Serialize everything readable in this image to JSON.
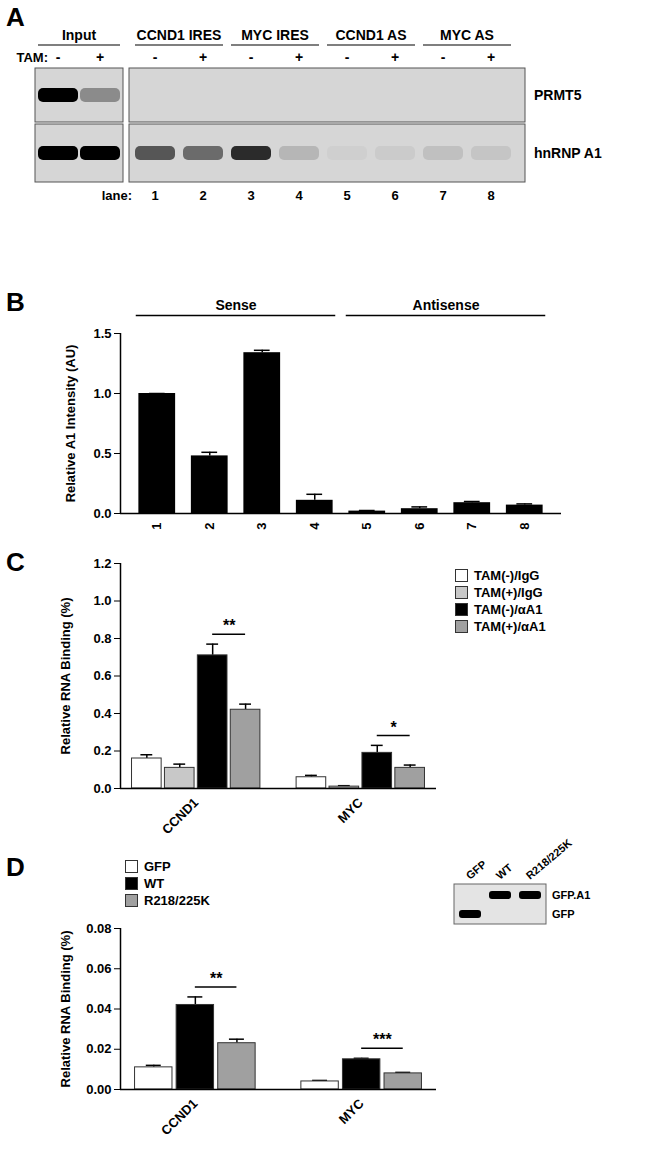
{
  "blot": {
    "panel": "A",
    "tam_label": "TAM:",
    "lane_label": "lane:",
    "groups": [
      {
        "label": "Input",
        "lanes": [
          {
            "tam": "-"
          },
          {
            "tam": "+"
          }
        ]
      },
      {
        "label": "CCND1 IRES",
        "lanes": [
          {
            "tam": "-",
            "number": 1
          },
          {
            "tam": "+",
            "number": 2
          }
        ]
      },
      {
        "label": "MYC IRES",
        "lanes": [
          {
            "tam": "-",
            "number": 3
          },
          {
            "tam": "+",
            "number": 4
          }
        ]
      },
      {
        "label": "CCND1 AS",
        "lanes": [
          {
            "tam": "-",
            "number": 5
          },
          {
            "tam": "+",
            "number": 6
          }
        ]
      },
      {
        "label": "MYC AS",
        "lanes": [
          {
            "tam": "-",
            "number": 7
          },
          {
            "tam": "+",
            "number": 8
          }
        ]
      }
    ],
    "rows": [
      {
        "label": "PRMT5",
        "signals": [
          1,
          0.35,
          0,
          0,
          0,
          0,
          0,
          0,
          0,
          0
        ]
      },
      {
        "label": "hnRNP A1",
        "signals": [
          1,
          1,
          0.6,
          0.5,
          0.8,
          0.15,
          0.03,
          0.05,
          0.1,
          0.08
        ]
      }
    ]
  },
  "chart_data": [
    {
      "panel": "B",
      "type": "bar",
      "y_label": "Relative A1 Intensity (AU)",
      "categories": [
        "1",
        "2",
        "3",
        "4",
        "5",
        "6",
        "7",
        "8"
      ],
      "values": [
        1.0,
        0.48,
        1.34,
        0.11,
        0.02,
        0.04,
        0.09,
        0.07
      ],
      "errors": [
        0.0,
        0.03,
        0.02,
        0.05,
        0.005,
        0.015,
        0.01,
        0.01
      ],
      "color": "#000000",
      "ylim": [
        0,
        1.5
      ],
      "yticks": [
        {
          "value": 0,
          "label": "0.0"
        },
        0.5,
        {
          "value": 1,
          "label": "1.0"
        },
        1.5
      ],
      "groups": [
        {
          "label": "Sense",
          "from": "1",
          "to": "4"
        },
        {
          "label": "Antisense",
          "from": "5",
          "to": "8"
        }
      ]
    },
    {
      "panel": "C",
      "type": "bar",
      "y_label": "Relative RNA Binding (%)",
      "categories": [
        "CCND1",
        "MYC"
      ],
      "series": [
        {
          "name": "TAM(-)/IgG",
          "color": "#ffffff",
          "values": [
            0.16,
            0.06
          ],
          "errors": [
            0.02,
            0.01
          ]
        },
        {
          "name": "TAM(+)/IgG",
          "color": "#c8c8c8",
          "values": [
            0.11,
            0.01
          ],
          "errors": [
            0.02,
            0.005
          ]
        },
        {
          "name": "TAM(-)/αA1",
          "color": "#000000",
          "values": [
            0.71,
            0.19
          ],
          "errors": [
            0.06,
            0.04
          ]
        },
        {
          "name": "TAM(+)/αA1",
          "color": "#a0a0a0",
          "values": [
            0.42,
            0.11
          ],
          "errors": [
            0.03,
            0.015
          ]
        }
      ],
      "ylim": [
        0,
        1.2
      ],
      "yticks": [
        {
          "value": 0,
          "label": "0.0"
        },
        0.2,
        0.4,
        0.6,
        0.8,
        {
          "value": 1,
          "label": "1.0"
        },
        1.2
      ],
      "legend": "top-right",
      "annotations": [
        {
          "category": "CCND1",
          "from": "TAM(-)/αA1",
          "to": "TAM(+)/αA1",
          "text": "**"
        },
        {
          "category": "MYC",
          "from": "TAM(-)/αA1",
          "to": "TAM(+)/αA1",
          "text": "*"
        }
      ]
    },
    {
      "panel": "D",
      "type": "bar",
      "y_label": "Relative RNA Binding (%)",
      "categories": [
        "CCND1",
        "MYC"
      ],
      "series": [
        {
          "name": "GFP",
          "color": "#ffffff",
          "values": [
            0.011,
            0.004
          ],
          "errors": [
            0.001,
            0.0005
          ]
        },
        {
          "name": "WT",
          "color": "#000000",
          "values": [
            0.042,
            0.015
          ],
          "errors": [
            0.004,
            0.0005
          ]
        },
        {
          "name": "R218/225K",
          "color": "#a0a0a0",
          "values": [
            0.023,
            0.008
          ],
          "errors": [
            0.002,
            0.0005
          ]
        }
      ],
      "ylim": [
        0,
        0.08
      ],
      "yticks": [
        {
          "value": 0,
          "label": "0.00"
        },
        0.02,
        0.04,
        0.06,
        0.08
      ],
      "legend": "top-left",
      "annotations": [
        {
          "category": "CCND1",
          "from": "WT",
          "to": "R218/225K",
          "text": "**"
        },
        {
          "category": "MYC",
          "from": "WT",
          "to": "R218/225K",
          "text": "***"
        }
      ],
      "inset": {
        "lanes": [
          "GFP",
          "WT",
          "R218/225K"
        ],
        "bands": [
          {
            "label": "GFP.A1",
            "signals": [
              0,
              1,
              1
            ]
          },
          {
            "label": "GFP",
            "signals": [
              1,
              0,
              0
            ]
          }
        ]
      }
    }
  ]
}
